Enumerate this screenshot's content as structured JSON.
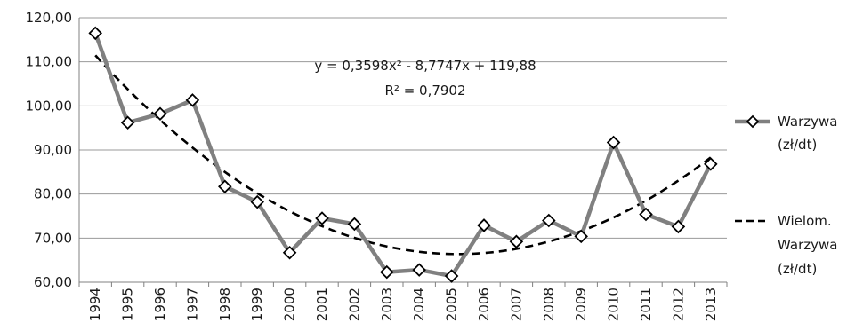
{
  "chart_data": {
    "type": "line",
    "title": "",
    "xlabel": "",
    "ylabel": "",
    "categories": [
      "1994",
      "1995",
      "1996",
      "1997",
      "1998",
      "1999",
      "2000",
      "2001",
      "2002",
      "2003",
      "2004",
      "2005",
      "2006",
      "2007",
      "2008",
      "2009",
      "2010",
      "2011",
      "2012",
      "2013"
    ],
    "y_ticks": [
      "60,00",
      "70,00",
      "80,00",
      "90,00",
      "100,00",
      "110,00",
      "120,00"
    ],
    "ylim": [
      60,
      120
    ],
    "grid": "horizontal",
    "legend_position": "right",
    "series": [
      {
        "name_lines": [
          "Warzywa",
          "(zł/dt)"
        ],
        "style": "solid-with-diamond-markers",
        "color": "#808080",
        "values": [
          116.5,
          96.2,
          98.2,
          101.3,
          81.7,
          78.2,
          66.7,
          74.5,
          73.2,
          62.3,
          62.8,
          61.4,
          72.9,
          69.2,
          74.0,
          70.4,
          91.7,
          75.4,
          72.6,
          86.8
        ]
      },
      {
        "name_lines": [
          "Wielom.",
          "Warzywa",
          "(zł/dt)"
        ],
        "style": "dashed-trendline",
        "color": "#000000",
        "coefficients": {
          "a": 0.3598,
          "b": -8.7747,
          "c": 119.88
        }
      }
    ],
    "annotations": {
      "equation": "y = 0,3598x² - 8,7747x + 119,88",
      "r_squared": "R² = 0,7902"
    },
    "colors": {
      "grid": "#9a9a9a",
      "axis": "#808080",
      "series_line": "#808080",
      "marker_stroke": "#000000",
      "marker_fill": "#ffffff",
      "trendline": "#000000",
      "text": "#1a1a1a"
    }
  }
}
